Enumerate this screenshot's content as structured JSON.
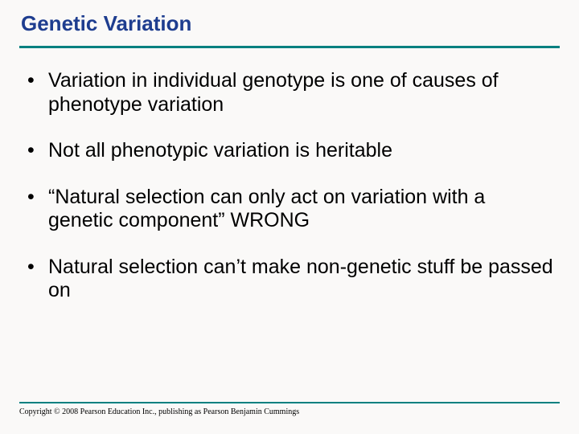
{
  "title": "Genetic Variation",
  "colors": {
    "title": "#1e3d8f",
    "accent_line": "#008080",
    "text": "#000000",
    "background": "#faf9f8"
  },
  "bullets": [
    "Variation in individual genotype is one of causes of phenotype variation",
    "Not all phenotypic variation is heritable",
    "“Natural selection can only act on variation with a genetic component”  WRONG",
    "Natural selection can’t make non-genetic stuff be passed on"
  ],
  "copyright": "Copyright © 2008 Pearson Education Inc., publishing as Pearson Benjamin Cummings"
}
